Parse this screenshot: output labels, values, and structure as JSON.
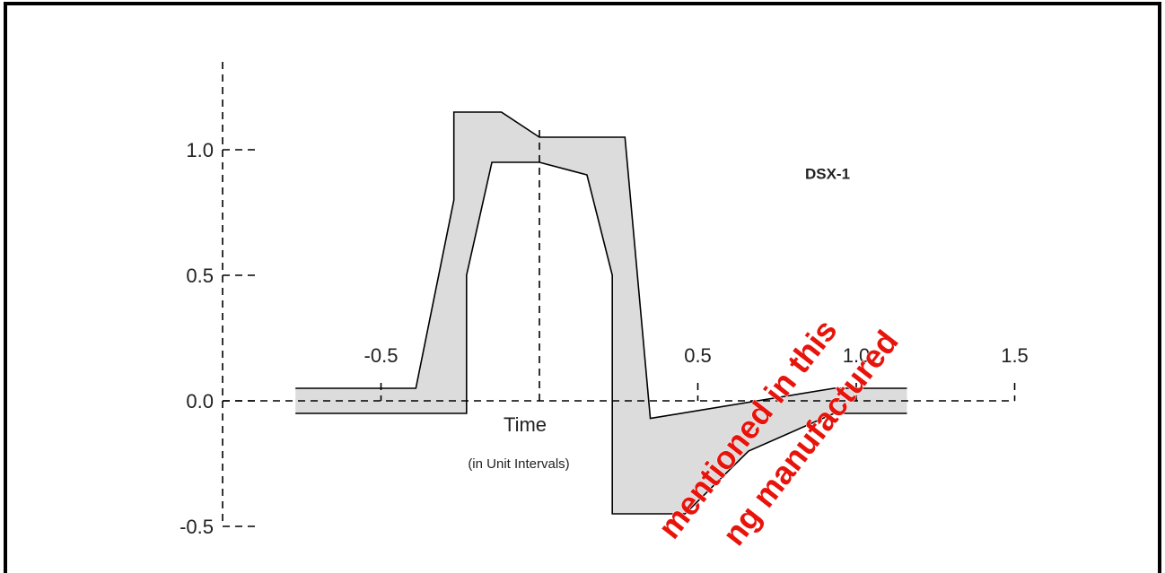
{
  "chart_data": {
    "type": "envelope",
    "title": "DSX-1",
    "xlabel": "Time",
    "xlabel_sub": "(in Unit Intervals)",
    "xlim": [
      -1.0,
      1.5
    ],
    "ylim": [
      -0.5,
      1.35
    ],
    "xticks": [
      -0.5,
      0.5,
      {
        "value": 1,
        "label": "1.0"
      },
      1.5
    ],
    "yticks": [
      {
        "value": 1,
        "label": "1.0"
      },
      0.5,
      {
        "value": 0,
        "label": "0.0"
      },
      -0.5
    ],
    "fill_color": "#dcdcdc",
    "line_color": "#000000",
    "series": [
      {
        "x": [
          -0.77,
          -0.39,
          -0.27,
          -0.27,
          -0.12,
          0,
          0.27,
          0.35,
          0.93,
          1.16
        ],
        "values": [
          0.05,
          0.05,
          0.8,
          1.15,
          1.15,
          1.05,
          1.05,
          -0.07,
          0.05,
          0.05
        ]
      },
      {
        "x": [
          -0.77,
          -0.23,
          -0.23,
          -0.15,
          0,
          0.15,
          0.23,
          0.23,
          0.46,
          0.66,
          0.93,
          1.16
        ],
        "values": [
          -0.05,
          -0.05,
          0.5,
          0.95,
          0.95,
          0.9,
          0.5,
          -0.45,
          -0.45,
          -0.2,
          -0.05,
          -0.05
        ]
      }
    ],
    "watermark": [
      "mentioned in this",
      "ng manufactured"
    ]
  }
}
